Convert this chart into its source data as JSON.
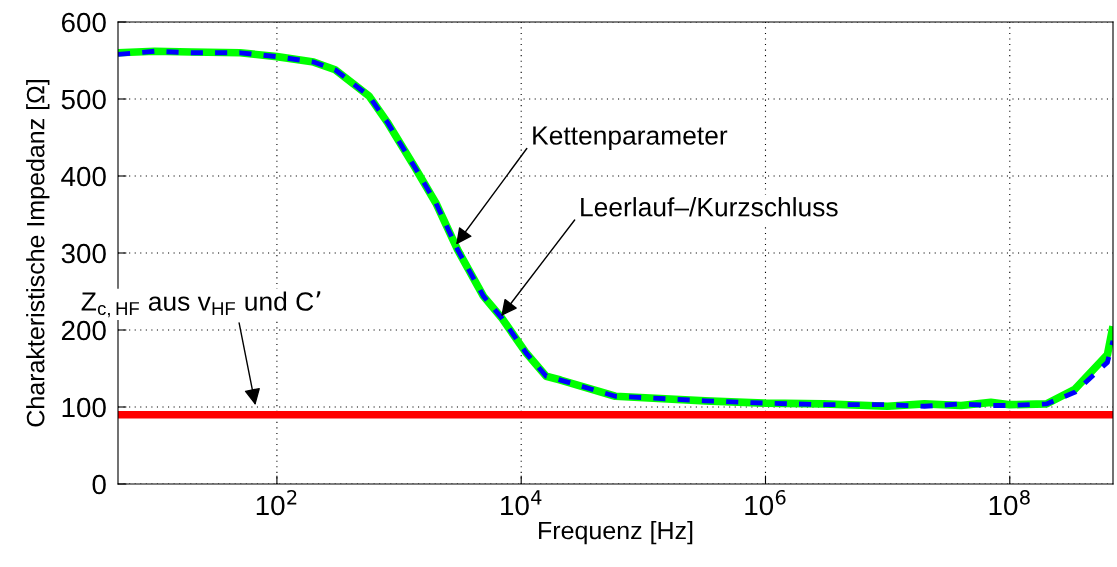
{
  "chart_data": {
    "type": "line",
    "xlabel": "Frequenz [Hz]",
    "ylabel": "Charakteristische Impedanz [Ω]",
    "log": "x",
    "grid": true,
    "marker": "none",
    "xlim": [
      5,
      700000000
    ],
    "ylim": [
      0,
      600
    ],
    "xticks": [
      {
        "value": 100,
        "label": "10$^{2}$"
      },
      {
        "value": 10000,
        "label": "10$^{4}$"
      },
      {
        "value": 1000000,
        "label": "10$^{6}$"
      },
      {
        "value": 100000000,
        "label": "10$^{8}$"
      }
    ],
    "yticks": [
      0,
      100,
      200,
      300,
      400,
      500,
      600
    ],
    "series": [
      {
        "color": "#00ff00",
        "line_style": "solid",
        "x": [
          5,
          10,
          20,
          50,
          100,
          200,
          300,
          567,
          800,
          1350,
          2000,
          3020,
          4900,
          6900,
          11000,
          16000,
          21000,
          59000,
          320000,
          1000000,
          3000000,
          10000000,
          20000000,
          40000000,
          70000000,
          100000000,
          200000000,
          340000000,
          630000000,
          700000000
        ],
        "values": [
          560,
          562,
          561,
          560,
          555,
          548,
          538,
          504,
          470,
          411,
          365,
          304,
          244,
          216,
          170,
          140,
          135,
          114,
          108,
          105,
          104,
          101,
          104,
          102,
          106,
          103,
          104,
          123,
          168,
          205
        ]
      },
      {
        "color": "#0000ff",
        "x": [
          5,
          10,
          20,
          50,
          100,
          200,
          300,
          567,
          800,
          1350,
          2000,
          3020,
          4900,
          6900,
          11000,
          16000,
          21000,
          59000,
          320000,
          1000000,
          3000000,
          10000000,
          20000000,
          40000000,
          70000000,
          100000000,
          200000000,
          340000000,
          630000000,
          700000000
        ],
        "values": [
          558,
          562,
          560,
          560,
          555,
          548,
          538,
          504,
          470,
          411,
          365,
          304,
          244,
          216,
          170,
          140,
          135,
          114,
          108,
          105,
          103,
          103,
          101,
          104,
          102,
          102,
          104,
          119,
          158,
          186
        ],
        "line_style": "dashed"
      },
      {
        "color": "#ff0000",
        "x": [
          5,
          700000000
        ],
        "values": [
          90,
          90
        ],
        "line_style": "solid"
      }
    ],
    "annotations": [
      {
        "text": "Kettenparameter",
        "x": 2930,
        "y": 311
      },
      {
        "text": "Leerlauf–/Kurzschluss",
        "x": 6860,
        "y": 218
      },
      "Z$_{c,HF}$ aus v$_{HF}$ und C’"
    ]
  }
}
